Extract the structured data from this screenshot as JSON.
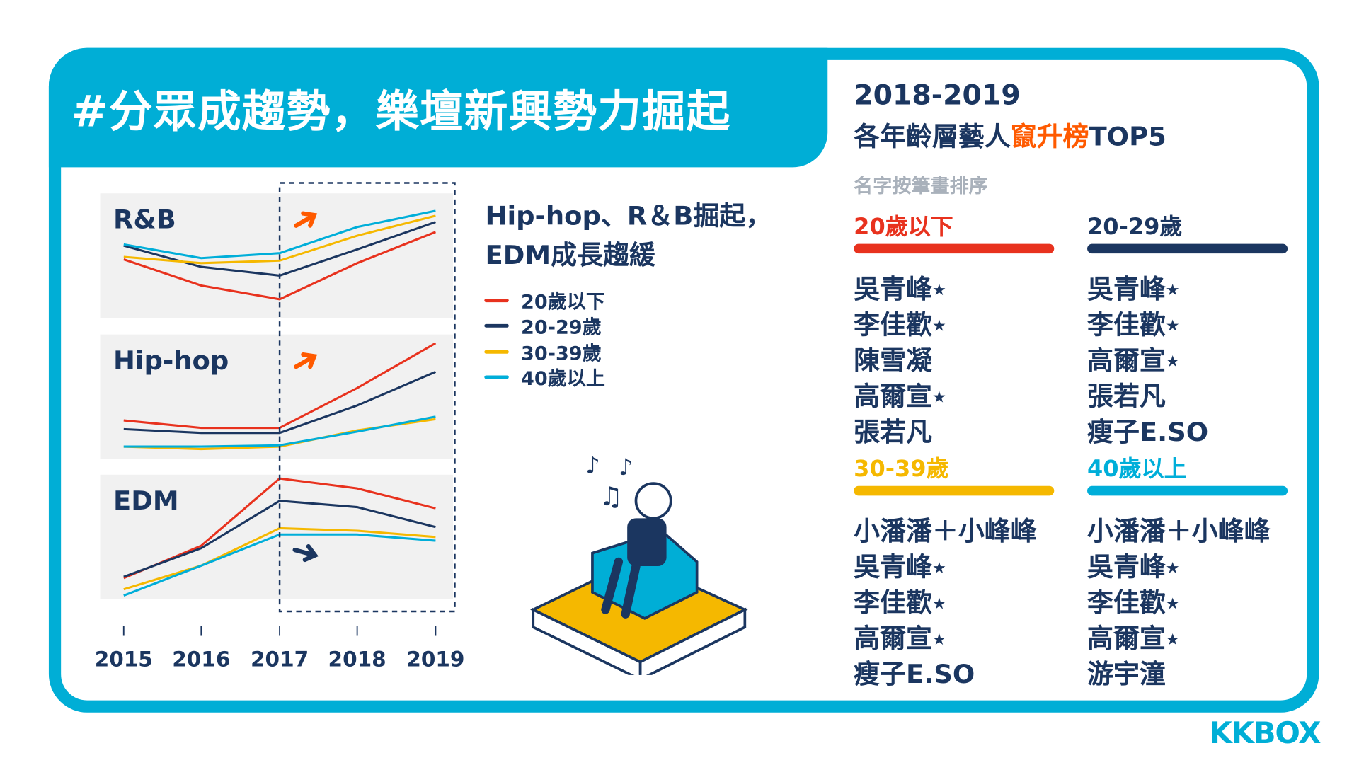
{
  "title": "#分眾成趨勢，樂壇新興勢力掘起",
  "right_title_line1": "2018-2019",
  "right_title_line2_pre": "各年齡層藝人",
  "right_title_line2_hl": "竄升榜",
  "right_title_line2_post": "TOP5",
  "sort_note": "名字按筆畫排序",
  "note_line1": "Hip-hop、R＆B掘起，",
  "note_line2": "EDM成長趨緩",
  "star": "★",
  "groups": [
    {
      "label": "20歲以下",
      "color": "#e8321e",
      "names": [
        {
          "n": "吳青峰",
          "s": true
        },
        {
          "n": "李佳歡",
          "s": true
        },
        {
          "n": "陳雪凝",
          "s": false
        },
        {
          "n": "高爾宣",
          "s": true
        },
        {
          "n": "張若凡",
          "s": false
        }
      ]
    },
    {
      "label": "20-29歲",
      "color": "#1b3660",
      "names": [
        {
          "n": "吳青峰",
          "s": true
        },
        {
          "n": "李佳歡",
          "s": true
        },
        {
          "n": "高爾宣",
          "s": true
        },
        {
          "n": "張若凡",
          "s": false
        },
        {
          "n": "瘦子E.SO",
          "s": false
        }
      ]
    },
    {
      "label": "30-39歲",
      "color": "#f5b800",
      "names": [
        {
          "n": "小潘潘＋小峰峰",
          "s": false
        },
        {
          "n": "吳青峰",
          "s": true
        },
        {
          "n": "李佳歡",
          "s": true
        },
        {
          "n": "高爾宣",
          "s": true
        },
        {
          "n": "瘦子E.SO",
          "s": false
        }
      ]
    },
    {
      "label": "40歲以上",
      "color": "#00aed9",
      "names": [
        {
          "n": "小潘潘＋小峰峰",
          "s": false
        },
        {
          "n": "吳青峰",
          "s": true
        },
        {
          "n": "李佳歡",
          "s": true
        },
        {
          "n": "高爾宣",
          "s": true
        },
        {
          "n": "游宇潼",
          "s": false
        }
      ]
    }
  ],
  "logo": "KKBOX",
  "chart_data": {
    "type": "line",
    "x": [
      "2015",
      "2016",
      "2017",
      "2018",
      "2019"
    ],
    "highlight_range": [
      "2017",
      "2019"
    ],
    "legend": [
      "20歲以下",
      "20-29歲",
      "30-39歲",
      "40歲以上"
    ],
    "colors": [
      "#e8321e",
      "#1b3660",
      "#f5b800",
      "#00aed9"
    ],
    "panels": [
      {
        "title": "R&B",
        "trend": "up",
        "trend_color": "#ff5a00",
        "series": [
          {
            "name": "20歲以下",
            "values": [
              47,
              26,
              15,
              44,
              69
            ]
          },
          {
            "name": "20-29歲",
            "values": [
              58,
              41,
              34,
              55,
              77
            ]
          },
          {
            "name": "30-39歲",
            "values": [
              49,
              44,
              46,
              66,
              82
            ]
          },
          {
            "name": "40歲以上",
            "values": [
              59,
              48,
              52,
              73,
              86
            ]
          }
        ]
      },
      {
        "title": "Hip-hop",
        "trend": "up",
        "trend_color": "#ff5a00",
        "series": [
          {
            "name": "20歲以下",
            "values": [
              31,
              25,
              25,
              57,
              93
            ]
          },
          {
            "name": "20-29歲",
            "values": [
              24,
              21,
              21,
              43,
              70
            ]
          },
          {
            "name": "30-39歲",
            "values": [
              10,
              8,
              10,
              23,
              32
            ]
          },
          {
            "name": "40歲以上",
            "values": [
              10,
              10,
              11,
              22,
              34
            ]
          }
        ]
      },
      {
        "title": "EDM",
        "trend": "flat",
        "trend_color": "#1b3660",
        "series": [
          {
            "name": "20歲以下",
            "values": [
              17,
              43,
              97,
              89,
              73
            ]
          },
          {
            "name": "20-29歲",
            "values": [
              18,
              41,
              79,
              74,
              58
            ]
          },
          {
            "name": "30-39歲",
            "values": [
              8,
              27,
              57,
              55,
              50
            ]
          },
          {
            "name": "40歲以上",
            "values": [
              3,
              27,
              52,
              52,
              47
            ]
          }
        ]
      }
    ]
  }
}
